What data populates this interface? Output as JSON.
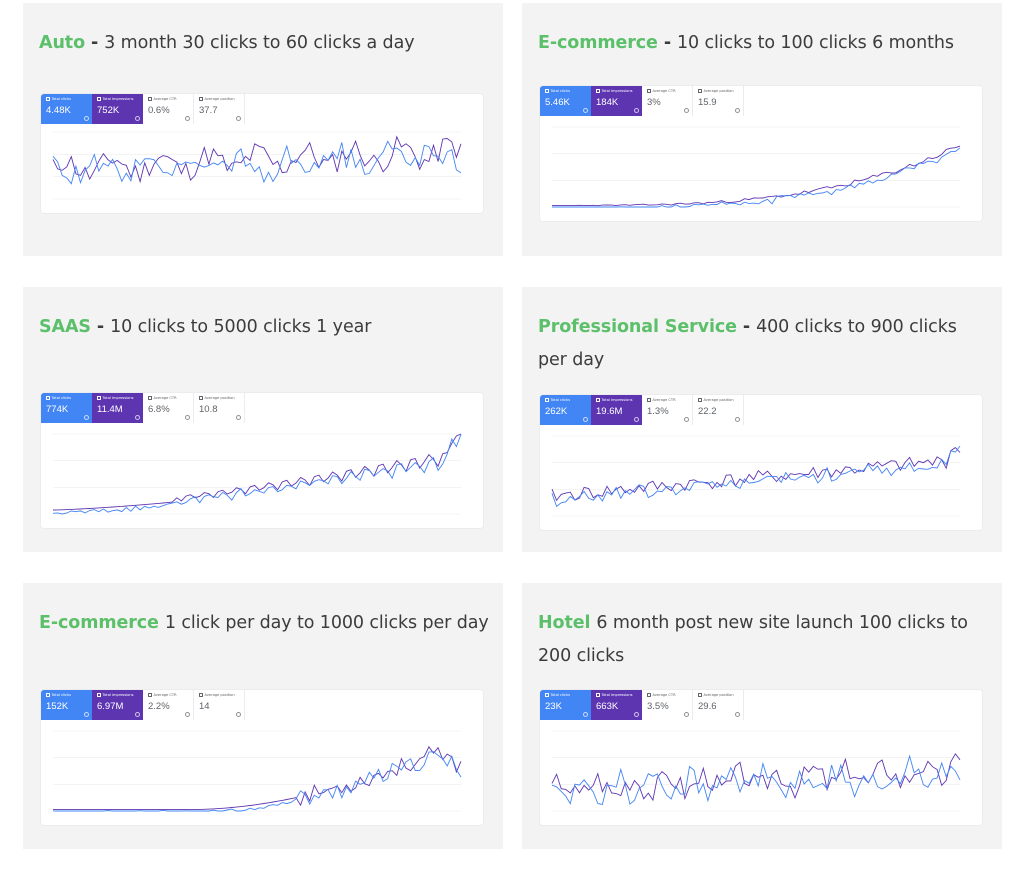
{
  "cards": [
    {
      "highlight": "Auto",
      "separator": " - ",
      "text": "3 month 30 clicks to 60 clicks a day",
      "metrics": {
        "clicks": {
          "label": "Total clicks",
          "value": "4.48K"
        },
        "impressions": {
          "label": "Total impressions",
          "value": "752K"
        },
        "ctr": {
          "label": "Average CTR",
          "value": "0.6%"
        },
        "position": {
          "label": "Average position",
          "value": "37.7"
        }
      },
      "chart_data": {
        "type": "line",
        "trend": "rising-noisy",
        "series": [
          {
            "name": "Clicks",
            "color": "#4285f4"
          },
          {
            "name": "Impressions",
            "color": "#5e35b1"
          }
        ]
      }
    },
    {
      "highlight": "E-commerce",
      "separator": " - ",
      "text": "10 clicks to 100 clicks 6 months",
      "metrics": {
        "clicks": {
          "label": "Total clicks",
          "value": "5.46K"
        },
        "impressions": {
          "label": "Total impressions",
          "value": "184K"
        },
        "ctr": {
          "label": "Average CTR",
          "value": "3%"
        },
        "position": {
          "label": "Average position",
          "value": "15.9"
        }
      },
      "chart_data": {
        "type": "line",
        "trend": "exponential",
        "series": [
          {
            "name": "Clicks",
            "color": "#4285f4"
          },
          {
            "name": "Impressions",
            "color": "#5e35b1"
          }
        ]
      }
    },
    {
      "highlight": "SAAS",
      "separator": " - ",
      "text": "10 clicks to 5000 clicks 1 year",
      "metrics": {
        "clicks": {
          "label": "Total clicks",
          "value": "774K"
        },
        "impressions": {
          "label": "Total impressions",
          "value": "11.4M"
        },
        "ctr": {
          "label": "Average CTR",
          "value": "6.8%"
        },
        "position": {
          "label": "Average position",
          "value": "10.8"
        }
      },
      "chart_data": {
        "type": "line",
        "trend": "weekly-oscillation-rising",
        "series": [
          {
            "name": "Clicks",
            "color": "#4285f4"
          },
          {
            "name": "Impressions",
            "color": "#5e35b1"
          }
        ]
      }
    },
    {
      "highlight": "Professional Service",
      "separator": " - ",
      "text": "400 clicks to 900 clicks per day",
      "metrics": {
        "clicks": {
          "label": "Total clicks",
          "value": "262K"
        },
        "impressions": {
          "label": "Total impressions",
          "value": "19.6M"
        },
        "ctr": {
          "label": "Average CTR",
          "value": "1.3%"
        },
        "position": {
          "label": "Average position",
          "value": "22.2"
        }
      },
      "chart_data": {
        "type": "line",
        "trend": "steady-rise",
        "series": [
          {
            "name": "Clicks",
            "color": "#4285f4"
          },
          {
            "name": "Impressions",
            "color": "#5e35b1"
          }
        ]
      }
    },
    {
      "highlight": "E-commerce",
      "separator": " ",
      "text": "1 click per day to 1000 clicks per day",
      "metrics": {
        "clicks": {
          "label": "Total clicks",
          "value": "152K"
        },
        "impressions": {
          "label": "Total impressions",
          "value": "6.97M"
        },
        "ctr": {
          "label": "Average CTR",
          "value": "2.2%"
        },
        "position": {
          "label": "Average position",
          "value": "14"
        }
      },
      "chart_data": {
        "type": "line",
        "trend": "late-surge",
        "series": [
          {
            "name": "Clicks",
            "color": "#4285f4"
          },
          {
            "name": "Impressions",
            "color": "#5e35b1"
          }
        ]
      }
    },
    {
      "highlight": "Hotel",
      "separator": " ",
      "text": "6 month post new site launch 100 clicks to 200 clicks",
      "metrics": {
        "clicks": {
          "label": "Total clicks",
          "value": "23K"
        },
        "impressions": {
          "label": "Total impressions",
          "value": "663K"
        },
        "ctr": {
          "label": "Average CTR",
          "value": "3.5%"
        },
        "position": {
          "label": "Average position",
          "value": "29.6"
        }
      },
      "chart_data": {
        "type": "line",
        "trend": "noisy-rise",
        "series": [
          {
            "name": "Clicks",
            "color": "#4285f4"
          },
          {
            "name": "Impressions",
            "color": "#5e35b1"
          }
        ]
      }
    }
  ]
}
